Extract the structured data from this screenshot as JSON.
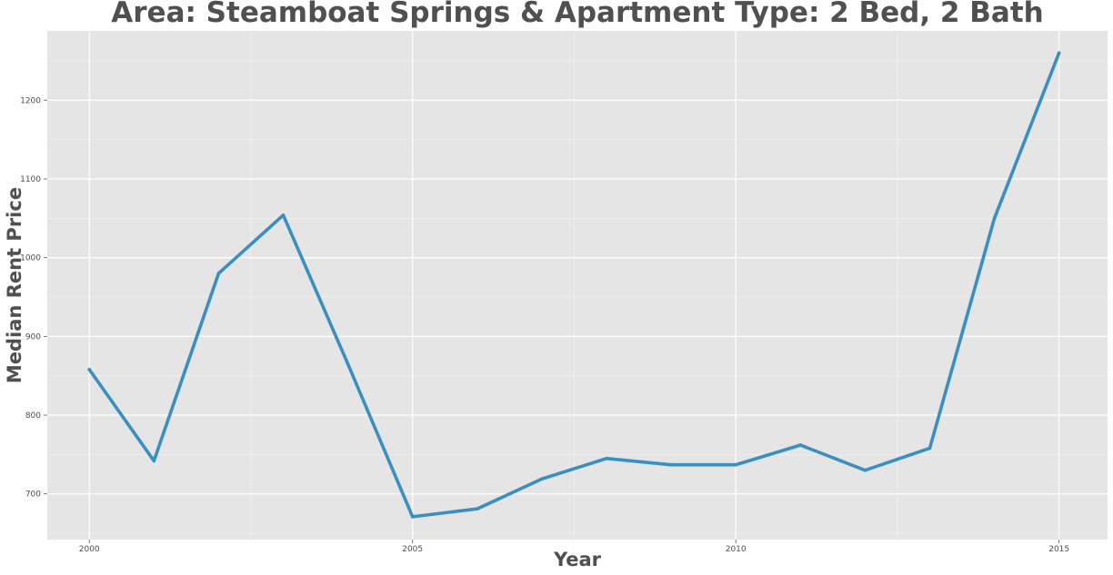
{
  "chart_data": {
    "type": "line",
    "title": "Area: Steamboat Springs & Apartment Type: 2 Bed, 2 Bath",
    "xlabel": "Year",
    "ylabel": "Median Rent Price",
    "x": [
      2000,
      2001,
      2002,
      2003,
      2004,
      2005,
      2006,
      2007,
      2008,
      2009,
      2010,
      2011,
      2012,
      2013,
      2014,
      2015
    ],
    "series": [
      {
        "values": [
          858,
          742,
          980,
          1054,
          865,
          671,
          681,
          719,
          745,
          737,
          737,
          762,
          730,
          758,
          1050,
          1260
        ]
      }
    ],
    "x_ticks": [
      "2000",
      "2005",
      "2010",
      "2015"
    ],
    "y_ticks": [
      "700",
      "800",
      "900",
      "1000",
      "1100",
      "1200"
    ],
    "xlim": [
      1999.35,
      2015.75
    ],
    "ylim": [
      642,
      1288
    ],
    "line_color": "#3b8fc0",
    "panel_color": "#e5e5e5",
    "grid_color": "#ffffff",
    "grid": true
  }
}
